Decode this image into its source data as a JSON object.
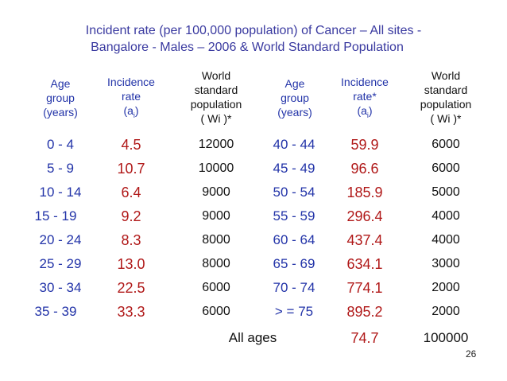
{
  "title_line1": "Incident rate (per 100,000 population)  of   Cancer – All sites  -",
  "title_line2": "Bangalore - Males – 2006 & World Standard Population",
  "headers": {
    "age_group": [
      "Age",
      "group",
      "(years)"
    ],
    "incidence_left": [
      "Incidence",
      "rate",
      "(a",
      "i",
      ")"
    ],
    "world_left": [
      "World",
      "standard",
      "population",
      "( Wi )*"
    ],
    "incidence_right": [
      "Incidence",
      "rate*",
      "(a",
      "i",
      ")"
    ],
    "world_right": [
      "World",
      "standard",
      "population",
      "( Wi )*"
    ]
  },
  "left_rows": [
    {
      "age": "0 - 4",
      "rate": "4.5",
      "pop": "12000"
    },
    {
      "age": "5 - 9",
      "rate": "10.7",
      "pop": "10000"
    },
    {
      "age": "10 - 14",
      "rate": "6.4",
      "pop": "9000"
    },
    {
      "age": "15 - 19",
      "rate": "9.2",
      "pop": "9000"
    },
    {
      "age": "20 - 24",
      "rate": "8.3",
      "pop": "8000"
    },
    {
      "age": "25 - 29",
      "rate": "13.0",
      "pop": "8000"
    },
    {
      "age": "30 - 34",
      "rate": "22.5",
      "pop": "6000"
    },
    {
      "age": "35 - 39",
      "rate": "33.3",
      "pop": "6000"
    }
  ],
  "right_rows": [
    {
      "age": "40 - 44",
      "rate": "59.9",
      "pop": "6000"
    },
    {
      "age": "45 - 49",
      "rate": "96.6",
      "pop": "6000"
    },
    {
      "age": "50 - 54",
      "rate": "185.9",
      "pop": "5000"
    },
    {
      "age": "55 - 59",
      "rate": "296.4",
      "pop": "4000"
    },
    {
      "age": "60 - 64",
      "rate": "437.4",
      "pop": "4000"
    },
    {
      "age": "65 - 69",
      "rate": "634.1",
      "pop": "3000"
    },
    {
      "age": "70 - 74",
      "rate": "774.1",
      "pop": "2000"
    },
    {
      "age": "> = 75",
      "rate": "895.2",
      "pop": "2000"
    }
  ],
  "total": {
    "label": "All ages",
    "rate": "74.7",
    "pop": "100000"
  },
  "slide_number": "26",
  "colors": {
    "blue": "#2233a8",
    "red": "#b01818",
    "text": "#111111"
  }
}
